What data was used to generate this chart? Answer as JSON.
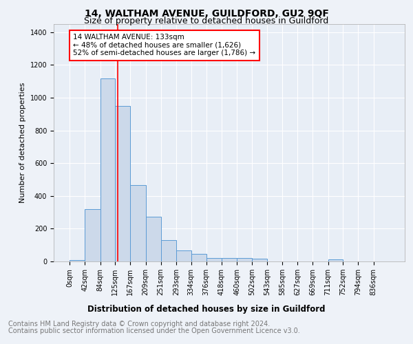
{
  "title": "14, WALTHAM AVENUE, GUILDFORD, GU2 9QF",
  "subtitle": "Size of property relative to detached houses in Guildford",
  "xlabel": "Distribution of detached houses by size in Guildford",
  "ylabel": "Number of detached properties",
  "footer_line1": "Contains HM Land Registry data © Crown copyright and database right 2024.",
  "footer_line2": "Contains public sector information licensed under the Open Government Licence v3.0.",
  "bin_labels": [
    "0sqm",
    "42sqm",
    "84sqm",
    "125sqm",
    "167sqm",
    "209sqm",
    "251sqm",
    "293sqm",
    "334sqm",
    "376sqm",
    "418sqm",
    "460sqm",
    "502sqm",
    "543sqm",
    "585sqm",
    "627sqm",
    "669sqm",
    "711sqm",
    "752sqm",
    "794sqm",
    "836sqm"
  ],
  "bar_heights": [
    10,
    320,
    1120,
    950,
    465,
    275,
    130,
    68,
    45,
    20,
    22,
    22,
    15,
    0,
    0,
    0,
    0,
    13,
    0,
    0,
    0
  ],
  "bar_color": "#ccd9ea",
  "bar_edge_color": "#5b9bd5",
  "annotation_text": "14 WALTHAM AVENUE: 133sqm\n← 48% of detached houses are smaller (1,626)\n52% of semi-detached houses are larger (1,786) →",
  "annotation_box_color": "white",
  "annotation_box_edge_color": "red",
  "red_line_x": 133,
  "ylim": [
    0,
    1450
  ],
  "yticks": [
    0,
    200,
    400,
    600,
    800,
    1000,
    1200,
    1400
  ],
  "bg_color": "#eef2f8",
  "plot_bg_color": "#e8eef6",
  "grid_color": "white",
  "title_fontsize": 10,
  "subtitle_fontsize": 9,
  "xlabel_fontsize": 8.5,
  "ylabel_fontsize": 8,
  "tick_fontsize": 7,
  "footer_fontsize": 7,
  "annotation_fontsize": 7.5
}
